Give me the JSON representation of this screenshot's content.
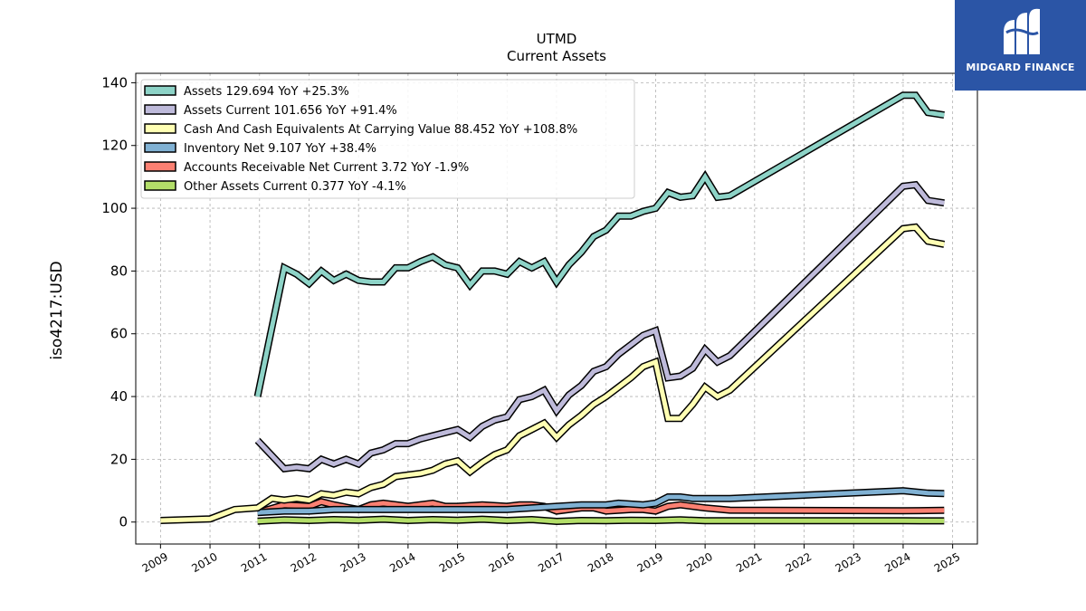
{
  "brand": {
    "name": "MIDGARD FINANCE",
    "bg_color": "#2b55a6"
  },
  "chart_data": {
    "type": "line",
    "title": "UTMD",
    "subtitle": "Current  Assets",
    "ylabel": "iso4217:USD",
    "xlabel": "",
    "xlim": [
      2008.5,
      2025.5
    ],
    "ylim": [
      -7,
      143
    ],
    "x_ticks": [
      2009,
      2010,
      2011,
      2012,
      2013,
      2014,
      2015,
      2016,
      2017,
      2018,
      2019,
      2020,
      2021,
      2022,
      2023,
      2024,
      2025
    ],
    "y_ticks": [
      0,
      20,
      40,
      60,
      80,
      100,
      120,
      140
    ],
    "grid": true,
    "legend_position": "top-left",
    "series": [
      {
        "name": "Assets  129.694 YoY +25.3%",
        "color": "#8dd3c7",
        "points": [
          [
            2010.96,
            40
          ],
          [
            2011.5,
            81
          ],
          [
            2011.75,
            79
          ],
          [
            2012.0,
            76
          ],
          [
            2012.25,
            80
          ],
          [
            2012.5,
            77
          ],
          [
            2012.75,
            79
          ],
          [
            2013.0,
            77
          ],
          [
            2013.25,
            76.5
          ],
          [
            2013.5,
            76.5
          ],
          [
            2013.75,
            81
          ],
          [
            2014.0,
            81
          ],
          [
            2014.25,
            83
          ],
          [
            2014.5,
            84.5
          ],
          [
            2014.75,
            82
          ],
          [
            2015.0,
            81
          ],
          [
            2015.25,
            75.5
          ],
          [
            2015.5,
            80
          ],
          [
            2015.75,
            80
          ],
          [
            2016.0,
            79
          ],
          [
            2016.25,
            83
          ],
          [
            2016.5,
            81
          ],
          [
            2016.75,
            83
          ],
          [
            2017.0,
            76.5
          ],
          [
            2017.25,
            82
          ],
          [
            2017.5,
            86
          ],
          [
            2017.75,
            91
          ],
          [
            2018.0,
            93
          ],
          [
            2018.25,
            97.5
          ],
          [
            2018.5,
            97.5
          ],
          [
            2018.75,
            99
          ],
          [
            2019.0,
            100
          ],
          [
            2019.25,
            105
          ],
          [
            2019.5,
            103.5
          ],
          [
            2019.75,
            104
          ],
          [
            2020.0,
            110
          ],
          [
            2020.25,
            103.5
          ],
          [
            2020.5,
            104
          ],
          [
            2024.0,
            136
          ],
          [
            2024.25,
            136
          ],
          [
            2024.5,
            130.5
          ],
          [
            2024.83,
            129.7
          ]
        ]
      },
      {
        "name": "Assets Current  101.656 YoY +91.4%",
        "color": "#bebada",
        "points": [
          [
            2010.96,
            26
          ],
          [
            2011.5,
            17
          ],
          [
            2011.75,
            17.5
          ],
          [
            2012.0,
            17
          ],
          [
            2012.25,
            20
          ],
          [
            2012.5,
            18.5
          ],
          [
            2012.75,
            20
          ],
          [
            2013.0,
            18.5
          ],
          [
            2013.25,
            22
          ],
          [
            2013.5,
            23
          ],
          [
            2013.75,
            25
          ],
          [
            2014.0,
            25
          ],
          [
            2014.25,
            26.5
          ],
          [
            2014.5,
            27.5
          ],
          [
            2014.75,
            28.5
          ],
          [
            2015.0,
            29.5
          ],
          [
            2015.25,
            27
          ],
          [
            2015.5,
            30.5
          ],
          [
            2015.75,
            32.5
          ],
          [
            2016.0,
            33.5
          ],
          [
            2016.25,
            39
          ],
          [
            2016.5,
            40
          ],
          [
            2016.75,
            42
          ],
          [
            2017.0,
            35.5
          ],
          [
            2017.25,
            40.5
          ],
          [
            2017.5,
            43.5
          ],
          [
            2017.75,
            48
          ],
          [
            2018.0,
            49.5
          ],
          [
            2018.25,
            53.5
          ],
          [
            2018.5,
            56.5
          ],
          [
            2018.75,
            59.5
          ],
          [
            2019.0,
            61
          ],
          [
            2019.25,
            46
          ],
          [
            2019.5,
            46.5
          ],
          [
            2019.75,
            49
          ],
          [
            2020.0,
            55
          ],
          [
            2020.25,
            51
          ],
          [
            2020.5,
            53
          ],
          [
            2024.0,
            107
          ],
          [
            2024.25,
            107.5
          ],
          [
            2024.5,
            102.5
          ],
          [
            2024.83,
            101.7
          ]
        ]
      },
      {
        "name": "Cash And Cash Equivalents At Carrying Value  88.452 YoY +108.8%",
        "color": "#ffffb3",
        "points": [
          [
            2009.0,
            0.5
          ],
          [
            2010.0,
            1
          ],
          [
            2010.5,
            4
          ],
          [
            2010.96,
            4.5
          ],
          [
            2011.25,
            7.5
          ],
          [
            2011.5,
            7
          ],
          [
            2011.75,
            7.5
          ],
          [
            2012.0,
            7
          ],
          [
            2012.25,
            9
          ],
          [
            2012.5,
            8.5
          ],
          [
            2012.75,
            9.5
          ],
          [
            2013.0,
            9
          ],
          [
            2013.25,
            11
          ],
          [
            2013.5,
            12
          ],
          [
            2013.75,
            14.5
          ],
          [
            2014.0,
            15
          ],
          [
            2014.25,
            15.5
          ],
          [
            2014.5,
            16.5
          ],
          [
            2014.75,
            18.5
          ],
          [
            2015.0,
            19.5
          ],
          [
            2015.25,
            16
          ],
          [
            2015.5,
            19
          ],
          [
            2015.75,
            21.5
          ],
          [
            2016.0,
            23
          ],
          [
            2016.25,
            27.5
          ],
          [
            2016.5,
            29.5
          ],
          [
            2016.75,
            31.5
          ],
          [
            2017.0,
            27
          ],
          [
            2017.25,
            31
          ],
          [
            2017.5,
            34
          ],
          [
            2017.75,
            37.5
          ],
          [
            2018.0,
            40
          ],
          [
            2018.25,
            43
          ],
          [
            2018.5,
            46
          ],
          [
            2018.75,
            49.5
          ],
          [
            2019.0,
            51
          ],
          [
            2019.25,
            33
          ],
          [
            2019.5,
            33
          ],
          [
            2019.75,
            37.5
          ],
          [
            2020.0,
            43
          ],
          [
            2020.25,
            40
          ],
          [
            2020.5,
            42
          ],
          [
            2024.0,
            93.5
          ],
          [
            2024.25,
            94
          ],
          [
            2024.5,
            89.5
          ],
          [
            2024.83,
            88.5
          ]
        ]
      },
      {
        "name": "Inventory Net  9.107 YoY +38.4%",
        "color": "#80b1d3",
        "points": [
          [
            2010.96,
            3
          ],
          [
            2011.5,
            3.5
          ],
          [
            2012.0,
            3.5
          ],
          [
            2012.5,
            4
          ],
          [
            2013.0,
            4
          ],
          [
            2013.5,
            4
          ],
          [
            2014.0,
            4
          ],
          [
            2014.5,
            4
          ],
          [
            2015.0,
            4
          ],
          [
            2015.5,
            4
          ],
          [
            2016.0,
            4
          ],
          [
            2016.5,
            4.5
          ],
          [
            2017.0,
            5
          ],
          [
            2017.5,
            5.5
          ],
          [
            2018.0,
            5.5
          ],
          [
            2018.25,
            6
          ],
          [
            2018.75,
            5.5
          ],
          [
            2019.0,
            6
          ],
          [
            2019.25,
            8
          ],
          [
            2019.5,
            8
          ],
          [
            2019.75,
            7.5
          ],
          [
            2020.0,
            7.5
          ],
          [
            2020.5,
            7.5
          ],
          [
            2024.0,
            10
          ],
          [
            2024.5,
            9.2
          ],
          [
            2024.83,
            9.1
          ]
        ]
      },
      {
        "name": "Accounts Receivable Net Current  3.72 YoY -1.9%",
        "color": "#fb8072",
        "points": [
          [
            2010.96,
            3
          ],
          [
            2011.5,
            5.5
          ],
          [
            2012.0,
            5
          ],
          [
            2012.25,
            6.5
          ],
          [
            2012.5,
            5.5
          ],
          [
            2013.0,
            4
          ],
          [
            2013.25,
            5.5
          ],
          [
            2013.5,
            6
          ],
          [
            2014.0,
            5
          ],
          [
            2014.5,
            6
          ],
          [
            2014.75,
            5
          ],
          [
            2015.0,
            5
          ],
          [
            2015.5,
            5.5
          ],
          [
            2016.0,
            5
          ],
          [
            2016.25,
            5.5
          ],
          [
            2016.5,
            5.5
          ],
          [
            2016.75,
            5
          ],
          [
            2017.0,
            3.5
          ],
          [
            2017.5,
            4.5
          ],
          [
            2017.75,
            4.5
          ],
          [
            2018.0,
            3.5
          ],
          [
            2018.5,
            4
          ],
          [
            2018.75,
            4
          ],
          [
            2019.0,
            3.5
          ],
          [
            2019.25,
            5
          ],
          [
            2019.5,
            5.5
          ],
          [
            2020.0,
            4.5
          ],
          [
            2020.5,
            3.8
          ],
          [
            2024.0,
            3.6
          ],
          [
            2024.83,
            3.72
          ]
        ]
      },
      {
        "name": "Other Assets Current  0.377 YoY -4.1%",
        "color": "#b3de69",
        "points": [
          [
            2010.96,
            0.3
          ],
          [
            2011.5,
            0.7
          ],
          [
            2012.0,
            0.5
          ],
          [
            2012.5,
            0.8
          ],
          [
            2013.0,
            0.6
          ],
          [
            2013.5,
            0.9
          ],
          [
            2014.0,
            0.5
          ],
          [
            2014.5,
            0.8
          ],
          [
            2015.0,
            0.6
          ],
          [
            2015.5,
            0.9
          ],
          [
            2016.0,
            0.5
          ],
          [
            2016.5,
            0.8
          ],
          [
            2017.0,
            0.2
          ],
          [
            2017.5,
            0.5
          ],
          [
            2018.0,
            0.4
          ],
          [
            2018.5,
            0.6
          ],
          [
            2019.0,
            0.5
          ],
          [
            2019.5,
            0.7
          ],
          [
            2020.0,
            0.4
          ],
          [
            2021.0,
            0.4
          ],
          [
            2022.0,
            0.4
          ],
          [
            2023.0,
            0.4
          ],
          [
            2024.0,
            0.4
          ],
          [
            2024.5,
            0.38
          ],
          [
            2024.83,
            0.377
          ]
        ]
      }
    ]
  }
}
